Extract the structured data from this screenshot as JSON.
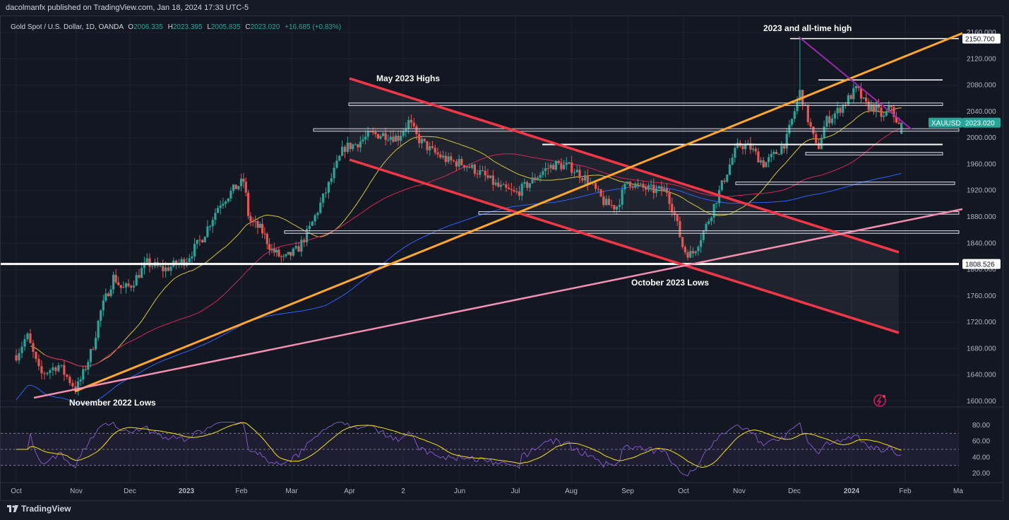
{
  "header": {
    "publisher": "dacolmanfx published on TradingView.com, Jan 18, 2024 17:33 UTC-5"
  },
  "legend": {
    "symbol": "Gold Spot / U.S. Dollar, 1D, OANDA",
    "o_label": "O",
    "o": "2006.335",
    "h_label": "H",
    "h": "2023.395",
    "l_label": "L",
    "l": "2005.835",
    "c_label": "C",
    "c": "2023.020",
    "change": "+16.685 (+0.83%)"
  },
  "footer": {
    "brand": "TradingView"
  },
  "chart_data": {
    "type": "candlestick",
    "price_axis": {
      "ticks": [
        "2160.000",
        "2120.000",
        "2080.000",
        "2040.000",
        "2000.000",
        "1960.000",
        "1920.000",
        "1880.000",
        "1840.000",
        "1800.000",
        "1760.000",
        "1720.000",
        "1680.000",
        "1640.000",
        "1600.000"
      ],
      "range": [
        1590,
        2170
      ]
    },
    "rsi_axis": {
      "ticks": [
        "80.00",
        "60.00",
        "40.00",
        "20.00"
      ],
      "range": [
        15,
        85
      ],
      "band": [
        30,
        70
      ]
    },
    "time_axis": [
      "Oct",
      "Nov",
      "Dec",
      "2023",
      "Feb",
      "Mar",
      "Apr",
      "2",
      "Jun",
      "Jul",
      "Aug",
      "Sep",
      "Oct",
      "Nov",
      "Dec",
      "2024",
      "Feb",
      "Ma"
    ],
    "price_labels": [
      {
        "text": "2150.700",
        "value": 2150.7,
        "bg": "#ffffff",
        "fg": "#131722"
      },
      {
        "text": "XAUUSD",
        "value": 2023.02,
        "bg": "#26a69a",
        "fg": "#ffffff"
      },
      {
        "text": "2023.020",
        "value": 2023.02,
        "bg": "#26a69a",
        "fg": "#ffffff"
      },
      {
        "text": "1808.526",
        "value": 1808.526,
        "bg": "#ffffff",
        "fg": "#131722"
      }
    ],
    "annotations": [
      "2023 and all-time high",
      "May 2023 Highs",
      "October 2023 Lows",
      "November 2022 Lows"
    ],
    "colors": {
      "up": "#26a69a",
      "down": "#ef5350",
      "ma_fast": "#d4c531",
      "ma_mid": "#d6245a",
      "ma_slow": "#2962ff",
      "channel": "#f23645",
      "trend_orange": "#ffa726",
      "trend_pink": "#f48fb1",
      "trend_purple": "#9c27b0",
      "rsi": "#7e57c2"
    },
    "levels": [
      2150.7,
      2088,
      2052,
      2012,
      1990,
      1977,
      1932,
      1886,
      1857,
      1808.526
    ]
  }
}
